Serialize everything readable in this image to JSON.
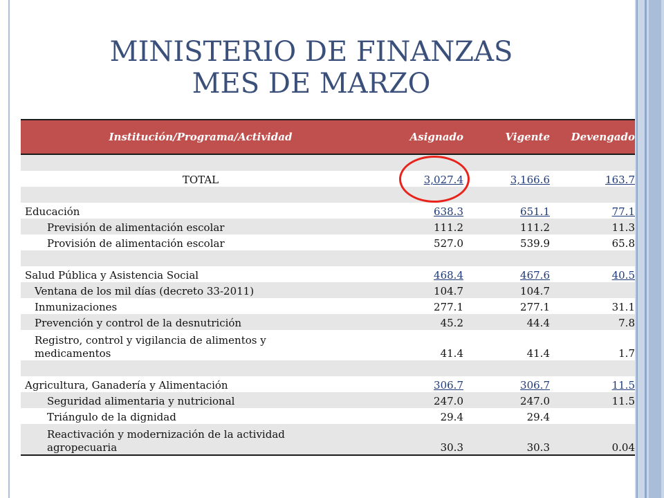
{
  "slide": {
    "title_line1": "MINISTERIO DE FINANZAS",
    "title_line2": "MES DE MARZO"
  },
  "table": {
    "headers": [
      "Institución/Programa/Actividad",
      "Asignado",
      "Vigente",
      "Devengado"
    ],
    "total": {
      "label": "TOTAL",
      "asignado": "3,027.4",
      "vigente": "3,166.6",
      "devengado": "163.7"
    },
    "educacion": {
      "label": "Educación",
      "asignado": "638.3",
      "vigente": "651.1",
      "devengado": "77.1",
      "items": [
        {
          "label": "Previsión de alimentación escolar",
          "asignado": "111.2",
          "vigente": "111.2",
          "devengado": "11.3"
        },
        {
          "label": "Provisión de alimentación escolar",
          "asignado": "527.0",
          "vigente": "539.9",
          "devengado": "65.8"
        }
      ]
    },
    "salud": {
      "label": "Salud Pública y Asistencia Social",
      "asignado": "468.4",
      "vigente": "467.6",
      "devengado": "40.5",
      "items": [
        {
          "label": "Ventana de los mil días (decreto 33-2011)",
          "asignado": "104.7",
          "vigente": "104.7",
          "devengado": ""
        },
        {
          "label": "Inmunizaciones",
          "asignado": "277.1",
          "vigente": "277.1",
          "devengado": "31.1"
        },
        {
          "label": "Prevención y control de la desnutrición",
          "asignado": "45.2",
          "vigente": "44.4",
          "devengado": "7.8"
        },
        {
          "label_line1": "Registro, control y vigilancia de alimentos y",
          "label_line2": "medicamentos",
          "asignado": "41.4",
          "vigente": "41.4",
          "devengado": "1.7"
        }
      ]
    },
    "agricultura": {
      "label": "Agricultura, Ganadería y Alimentación",
      "asignado": "306.7",
      "vigente": "306.7",
      "devengado": "11.5",
      "items": [
        {
          "label": "Seguridad alimentaria y nutricional",
          "asignado": "247.0",
          "vigente": "247.0",
          "devengado": "11.5"
        },
        {
          "label": "Triángulo de la dignidad",
          "asignado": "29.4",
          "vigente": "29.4",
          "devengado": ""
        },
        {
          "label_line1": "Reactivación y modernización de la actividad",
          "label_line2": "agropecuaria",
          "asignado": "30.3",
          "vigente": "30.3",
          "devengado": "0.04"
        }
      ]
    }
  },
  "colors": {
    "header_bg": "#c0504d",
    "title_color": "#3a4f7a",
    "highlight_circle": "#e8231b",
    "alt_row_bg": "#e6e6e6"
  }
}
